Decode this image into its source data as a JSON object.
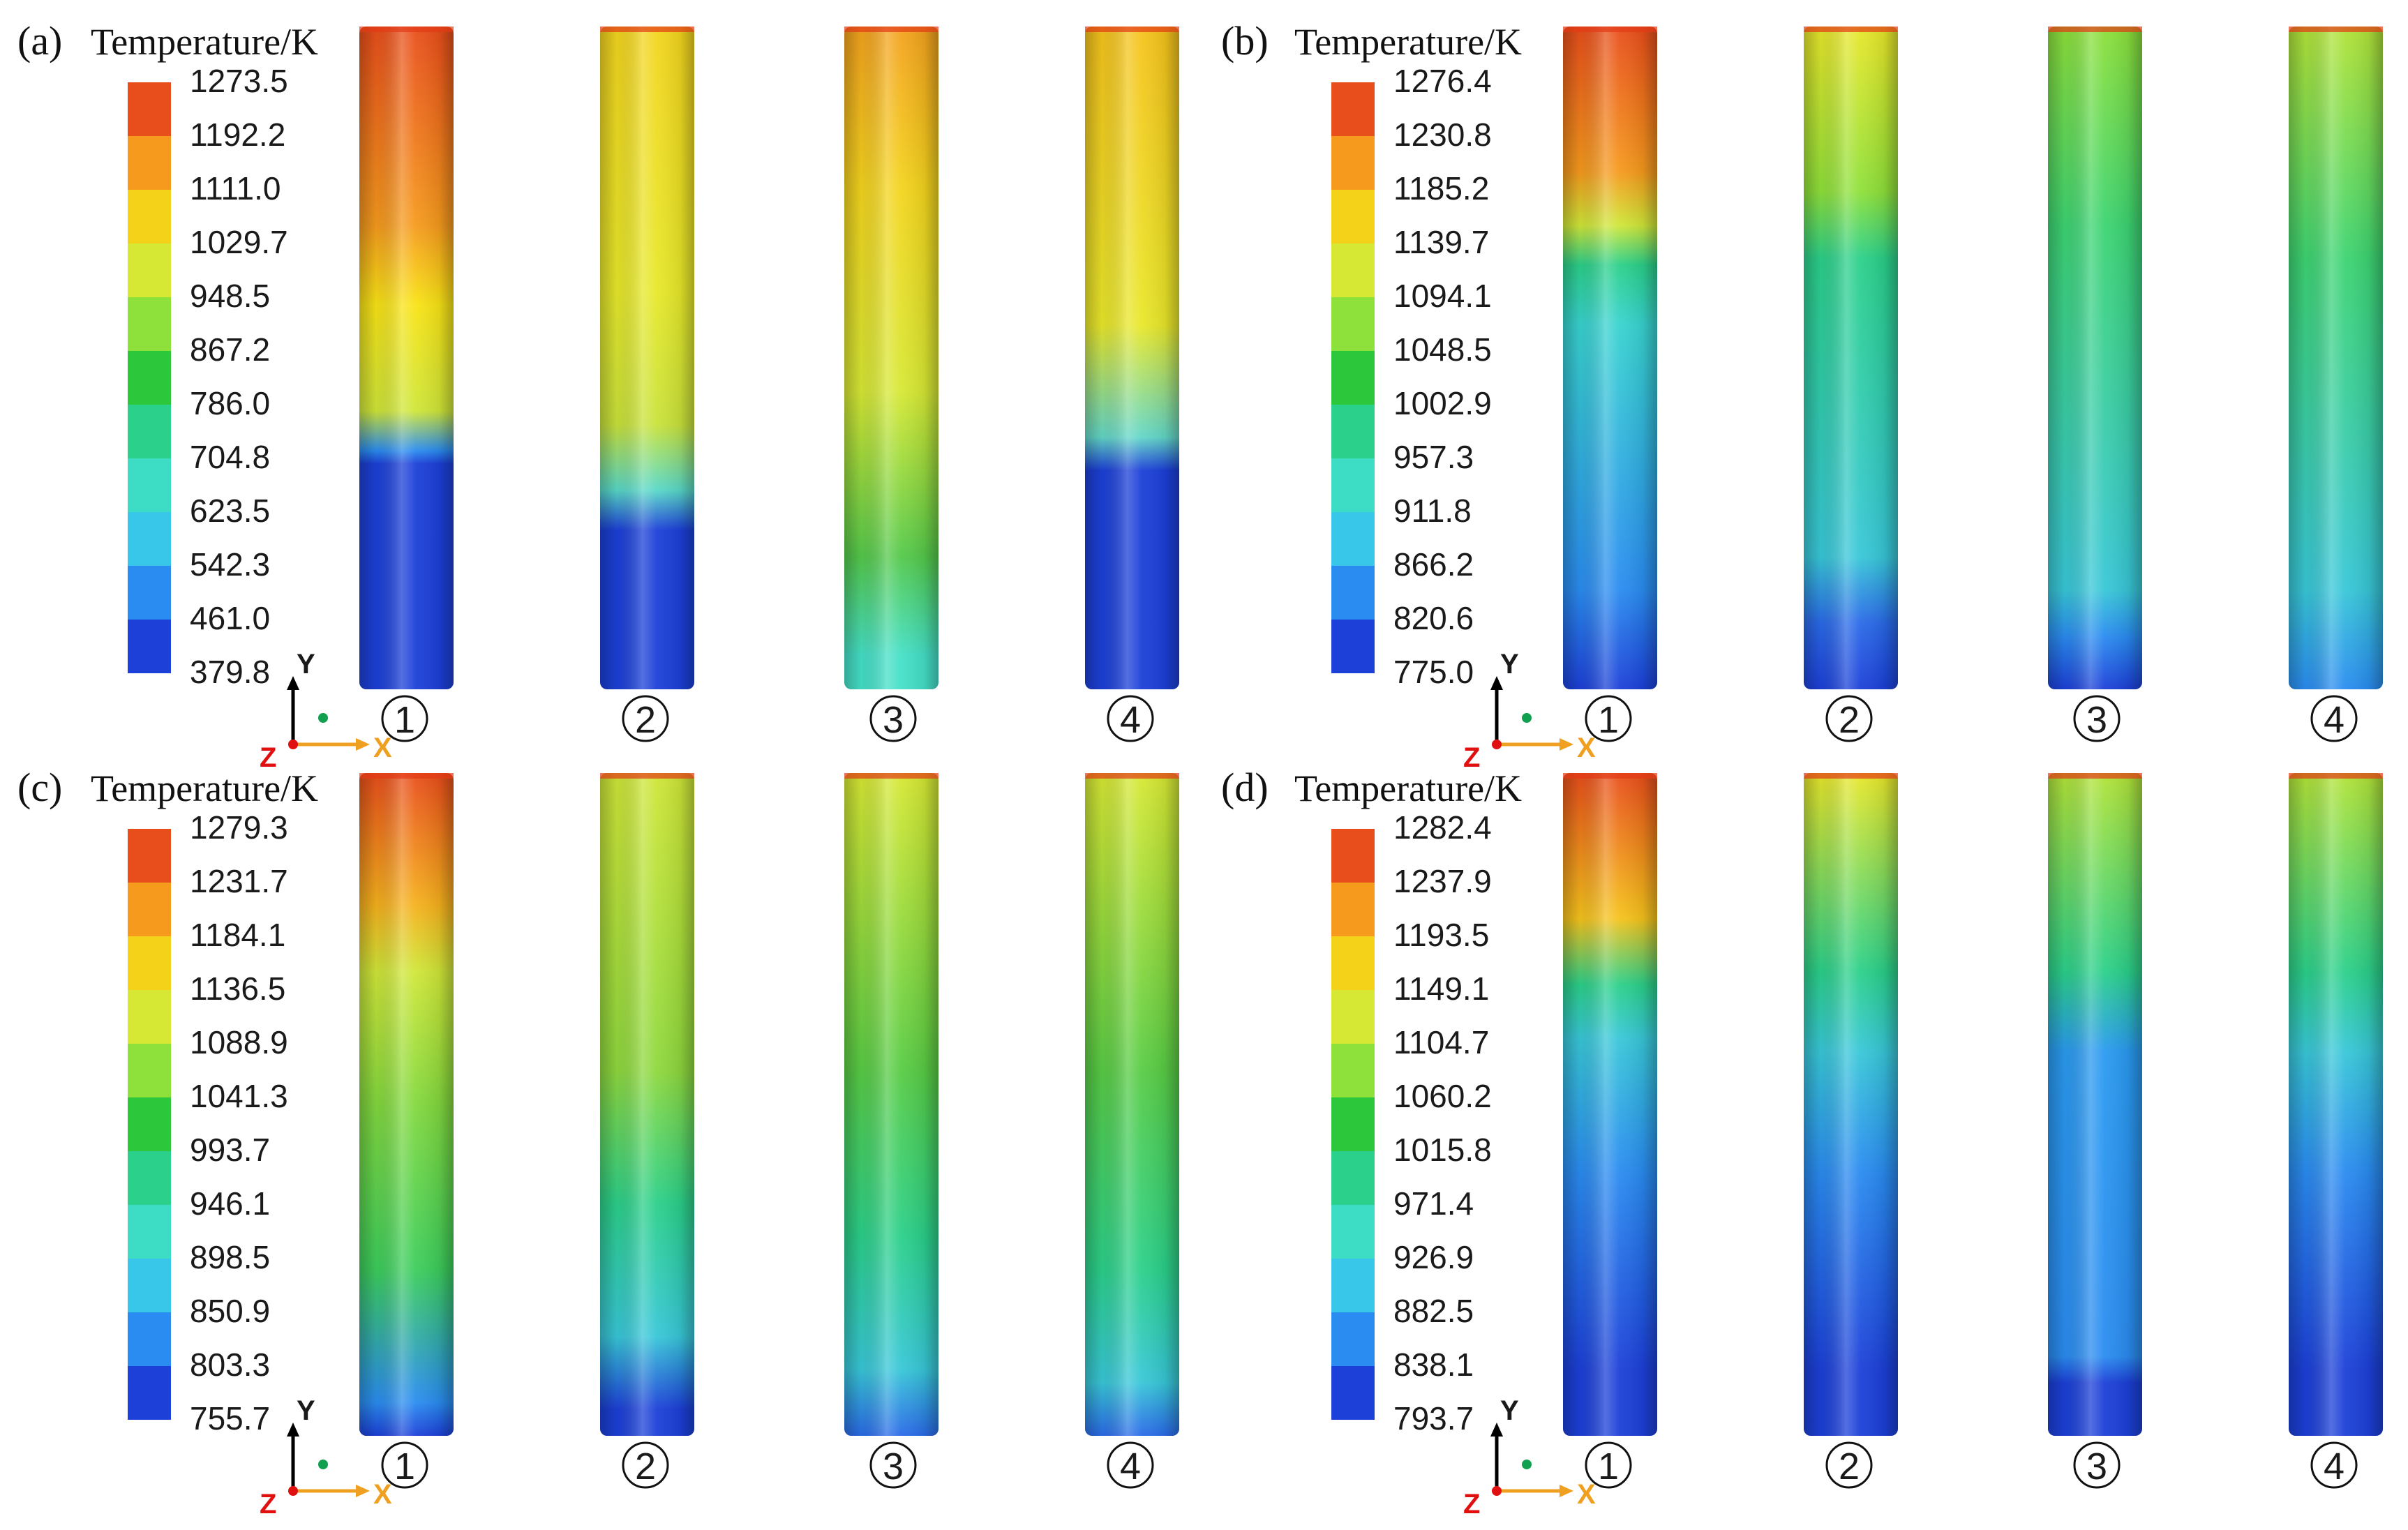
{
  "figure": {
    "panels": [
      {
        "label": "(a)",
        "legend_title": "Temperature/K",
        "ticks": [
          "1273.5",
          "1192.2",
          "1111.0",
          "1029.7",
          "948.5",
          "867.2",
          "786.0",
          "704.8",
          "623.5",
          "542.3",
          "461.0",
          "379.8"
        ],
        "tubes": [
          {
            "label": "①",
            "bands": [
              [
                0.0,
                "#e84e1b"
              ],
              [
                0.3,
                "#f59a1d"
              ],
              [
                0.42,
                "#f8e316"
              ],
              [
                0.58,
                "#cfe638"
              ],
              [
                0.64,
                "#2a8cf0"
              ],
              [
                0.66,
                "#1c40d8"
              ],
              [
                1.0,
                "#1c40d8"
              ]
            ]
          },
          {
            "label": "②",
            "bands": [
              [
                0.0,
                "#f3d51e"
              ],
              [
                0.4,
                "#e7e82a"
              ],
              [
                0.6,
                "#c9e23a"
              ],
              [
                0.7,
                "#58d8c8"
              ],
              [
                0.76,
                "#1c40d8"
              ],
              [
                1.0,
                "#1c40d8"
              ]
            ]
          },
          {
            "label": "③",
            "bands": [
              [
                0.0,
                "#f3a21e"
              ],
              [
                0.25,
                "#f3d51e"
              ],
              [
                0.55,
                "#d7e834"
              ],
              [
                0.8,
                "#54c94b"
              ],
              [
                0.95,
                "#45e0c8"
              ],
              [
                1.0,
                "#45e0c8"
              ]
            ]
          },
          {
            "label": "④",
            "bands": [
              [
                0.0,
                "#f5c31c"
              ],
              [
                0.45,
                "#e9e72a"
              ],
              [
                0.62,
                "#62d6c8"
              ],
              [
                0.67,
                "#1c40d8"
              ],
              [
                1.0,
                "#1c40d8"
              ]
            ]
          }
        ]
      },
      {
        "label": "(b)",
        "legend_title": "Temperature/K",
        "ticks": [
          "1276.4",
          "1230.8",
          "1185.2",
          "1139.7",
          "1094.1",
          "1048.5",
          "1002.9",
          "957.3",
          "911.8",
          "866.2",
          "820.6",
          "775.0"
        ],
        "tubes": [
          {
            "label": "①",
            "bands": [
              [
                0.0,
                "#e84e1b"
              ],
              [
                0.22,
                "#f59a1d"
              ],
              [
                0.3,
                "#cfe638"
              ],
              [
                0.36,
                "#2bd08a"
              ],
              [
                0.45,
                "#38d3d0"
              ],
              [
                0.85,
                "#2a8cf0"
              ],
              [
                1.0,
                "#1c40d8"
              ]
            ]
          },
          {
            "label": "②",
            "bands": [
              [
                0.0,
                "#e9e72a"
              ],
              [
                0.25,
                "#8ee03a"
              ],
              [
                0.35,
                "#2bd08a"
              ],
              [
                0.8,
                "#38c7d8"
              ],
              [
                0.9,
                "#2a6ae8"
              ],
              [
                1.0,
                "#1c40d8"
              ]
            ]
          },
          {
            "label": "③",
            "bands": [
              [
                0.0,
                "#8ee03a"
              ],
              [
                0.3,
                "#3dd472"
              ],
              [
                0.85,
                "#38c7d8"
              ],
              [
                0.92,
                "#2a8cf0"
              ],
              [
                1.0,
                "#1c40d8"
              ]
            ]
          },
          {
            "label": "④",
            "bands": [
              [
                0.0,
                "#b3e338"
              ],
              [
                0.35,
                "#3dd472"
              ],
              [
                0.85,
                "#38c7d8"
              ],
              [
                1.0,
                "#2a8cf0"
              ]
            ]
          }
        ]
      },
      {
        "label": "(c)",
        "legend_title": "Temperature/K",
        "ticks": [
          "1279.3",
          "1231.7",
          "1184.1",
          "1136.5",
          "1088.9",
          "1041.3",
          "993.7",
          "946.1",
          "898.5",
          "850.9",
          "803.3",
          "755.7"
        ],
        "tubes": [
          {
            "label": "①",
            "bands": [
              [
                0.0,
                "#e84e1b"
              ],
              [
                0.2,
                "#f5b11d"
              ],
              [
                0.3,
                "#cfe638"
              ],
              [
                0.5,
                "#82d83e"
              ],
              [
                0.75,
                "#3ccd5c"
              ],
              [
                0.95,
                "#2a8cf0"
              ],
              [
                1.0,
                "#1c40d8"
              ]
            ]
          },
          {
            "label": "②",
            "bands": [
              [
                0.0,
                "#cfe638"
              ],
              [
                0.45,
                "#8ed83e"
              ],
              [
                0.65,
                "#2bd08a"
              ],
              [
                0.85,
                "#38c7d8"
              ],
              [
                0.96,
                "#1c40d8"
              ],
              [
                1.0,
                "#1c40d8"
              ]
            ]
          },
          {
            "label": "③",
            "bands": [
              [
                0.0,
                "#d7e834"
              ],
              [
                0.45,
                "#58cc45"
              ],
              [
                0.7,
                "#2bd08a"
              ],
              [
                0.9,
                "#38c7d8"
              ],
              [
                1.0,
                "#2a6ae8"
              ]
            ]
          },
          {
            "label": "④",
            "bands": [
              [
                0.0,
                "#d7e834"
              ],
              [
                0.45,
                "#58cc45"
              ],
              [
                0.75,
                "#2bd08a"
              ],
              [
                0.92,
                "#38c7d8"
              ],
              [
                1.0,
                "#2a6ae8"
              ]
            ]
          }
        ]
      },
      {
        "label": "(d)",
        "legend_title": "Temperature/K",
        "ticks": [
          "1282.4",
          "1237.9",
          "1193.5",
          "1149.1",
          "1104.7",
          "1060.2",
          "1015.8",
          "971.4",
          "926.9",
          "882.5",
          "838.1",
          "793.7"
        ],
        "tubes": [
          {
            "label": "①",
            "bands": [
              [
                0.0,
                "#e84e1b"
              ],
              [
                0.22,
                "#f5c31c"
              ],
              [
                0.32,
                "#2bd08a"
              ],
              [
                0.4,
                "#38c7d8"
              ],
              [
                0.6,
                "#2a8cf0"
              ],
              [
                0.9,
                "#1c40d8"
              ],
              [
                1.0,
                "#1c40d8"
              ]
            ]
          },
          {
            "label": "②",
            "bands": [
              [
                0.0,
                "#e9e72a"
              ],
              [
                0.3,
                "#2bd08a"
              ],
              [
                0.42,
                "#38c7d8"
              ],
              [
                0.6,
                "#2a8cf0"
              ],
              [
                0.9,
                "#1c40d8"
              ],
              [
                1.0,
                "#1c40d8"
              ]
            ]
          },
          {
            "label": "③",
            "bands": [
              [
                0.0,
                "#b3e338"
              ],
              [
                0.3,
                "#2bd08a"
              ],
              [
                0.42,
                "#2a9af0"
              ],
              [
                0.88,
                "#2a8cf0"
              ],
              [
                0.92,
                "#1c40d8"
              ],
              [
                1.0,
                "#1c40d8"
              ]
            ]
          },
          {
            "label": "④",
            "bands": [
              [
                0.0,
                "#b3e338"
              ],
              [
                0.3,
                "#2bd08a"
              ],
              [
                0.42,
                "#38c7d8"
              ],
              [
                0.6,
                "#2a8cf0"
              ],
              [
                0.9,
                "#1c40d8"
              ],
              [
                1.0,
                "#1c40d8"
              ]
            ]
          }
        ]
      }
    ],
    "legend_colors": [
      "#e84e1b",
      "#f59a1d",
      "#f5d21a",
      "#d7e834",
      "#8ee03a",
      "#2cc73a",
      "#2bd08a",
      "#3ddcc4",
      "#38c7e8",
      "#2a8cf0",
      "#1c40d8"
    ],
    "axes": {
      "y": "Y",
      "x": "X",
      "z": "Z"
    },
    "axis_colors": {
      "y": "#000000",
      "x": "#f0a020",
      "z": "#e01010",
      "dot": "#10a050"
    }
  }
}
